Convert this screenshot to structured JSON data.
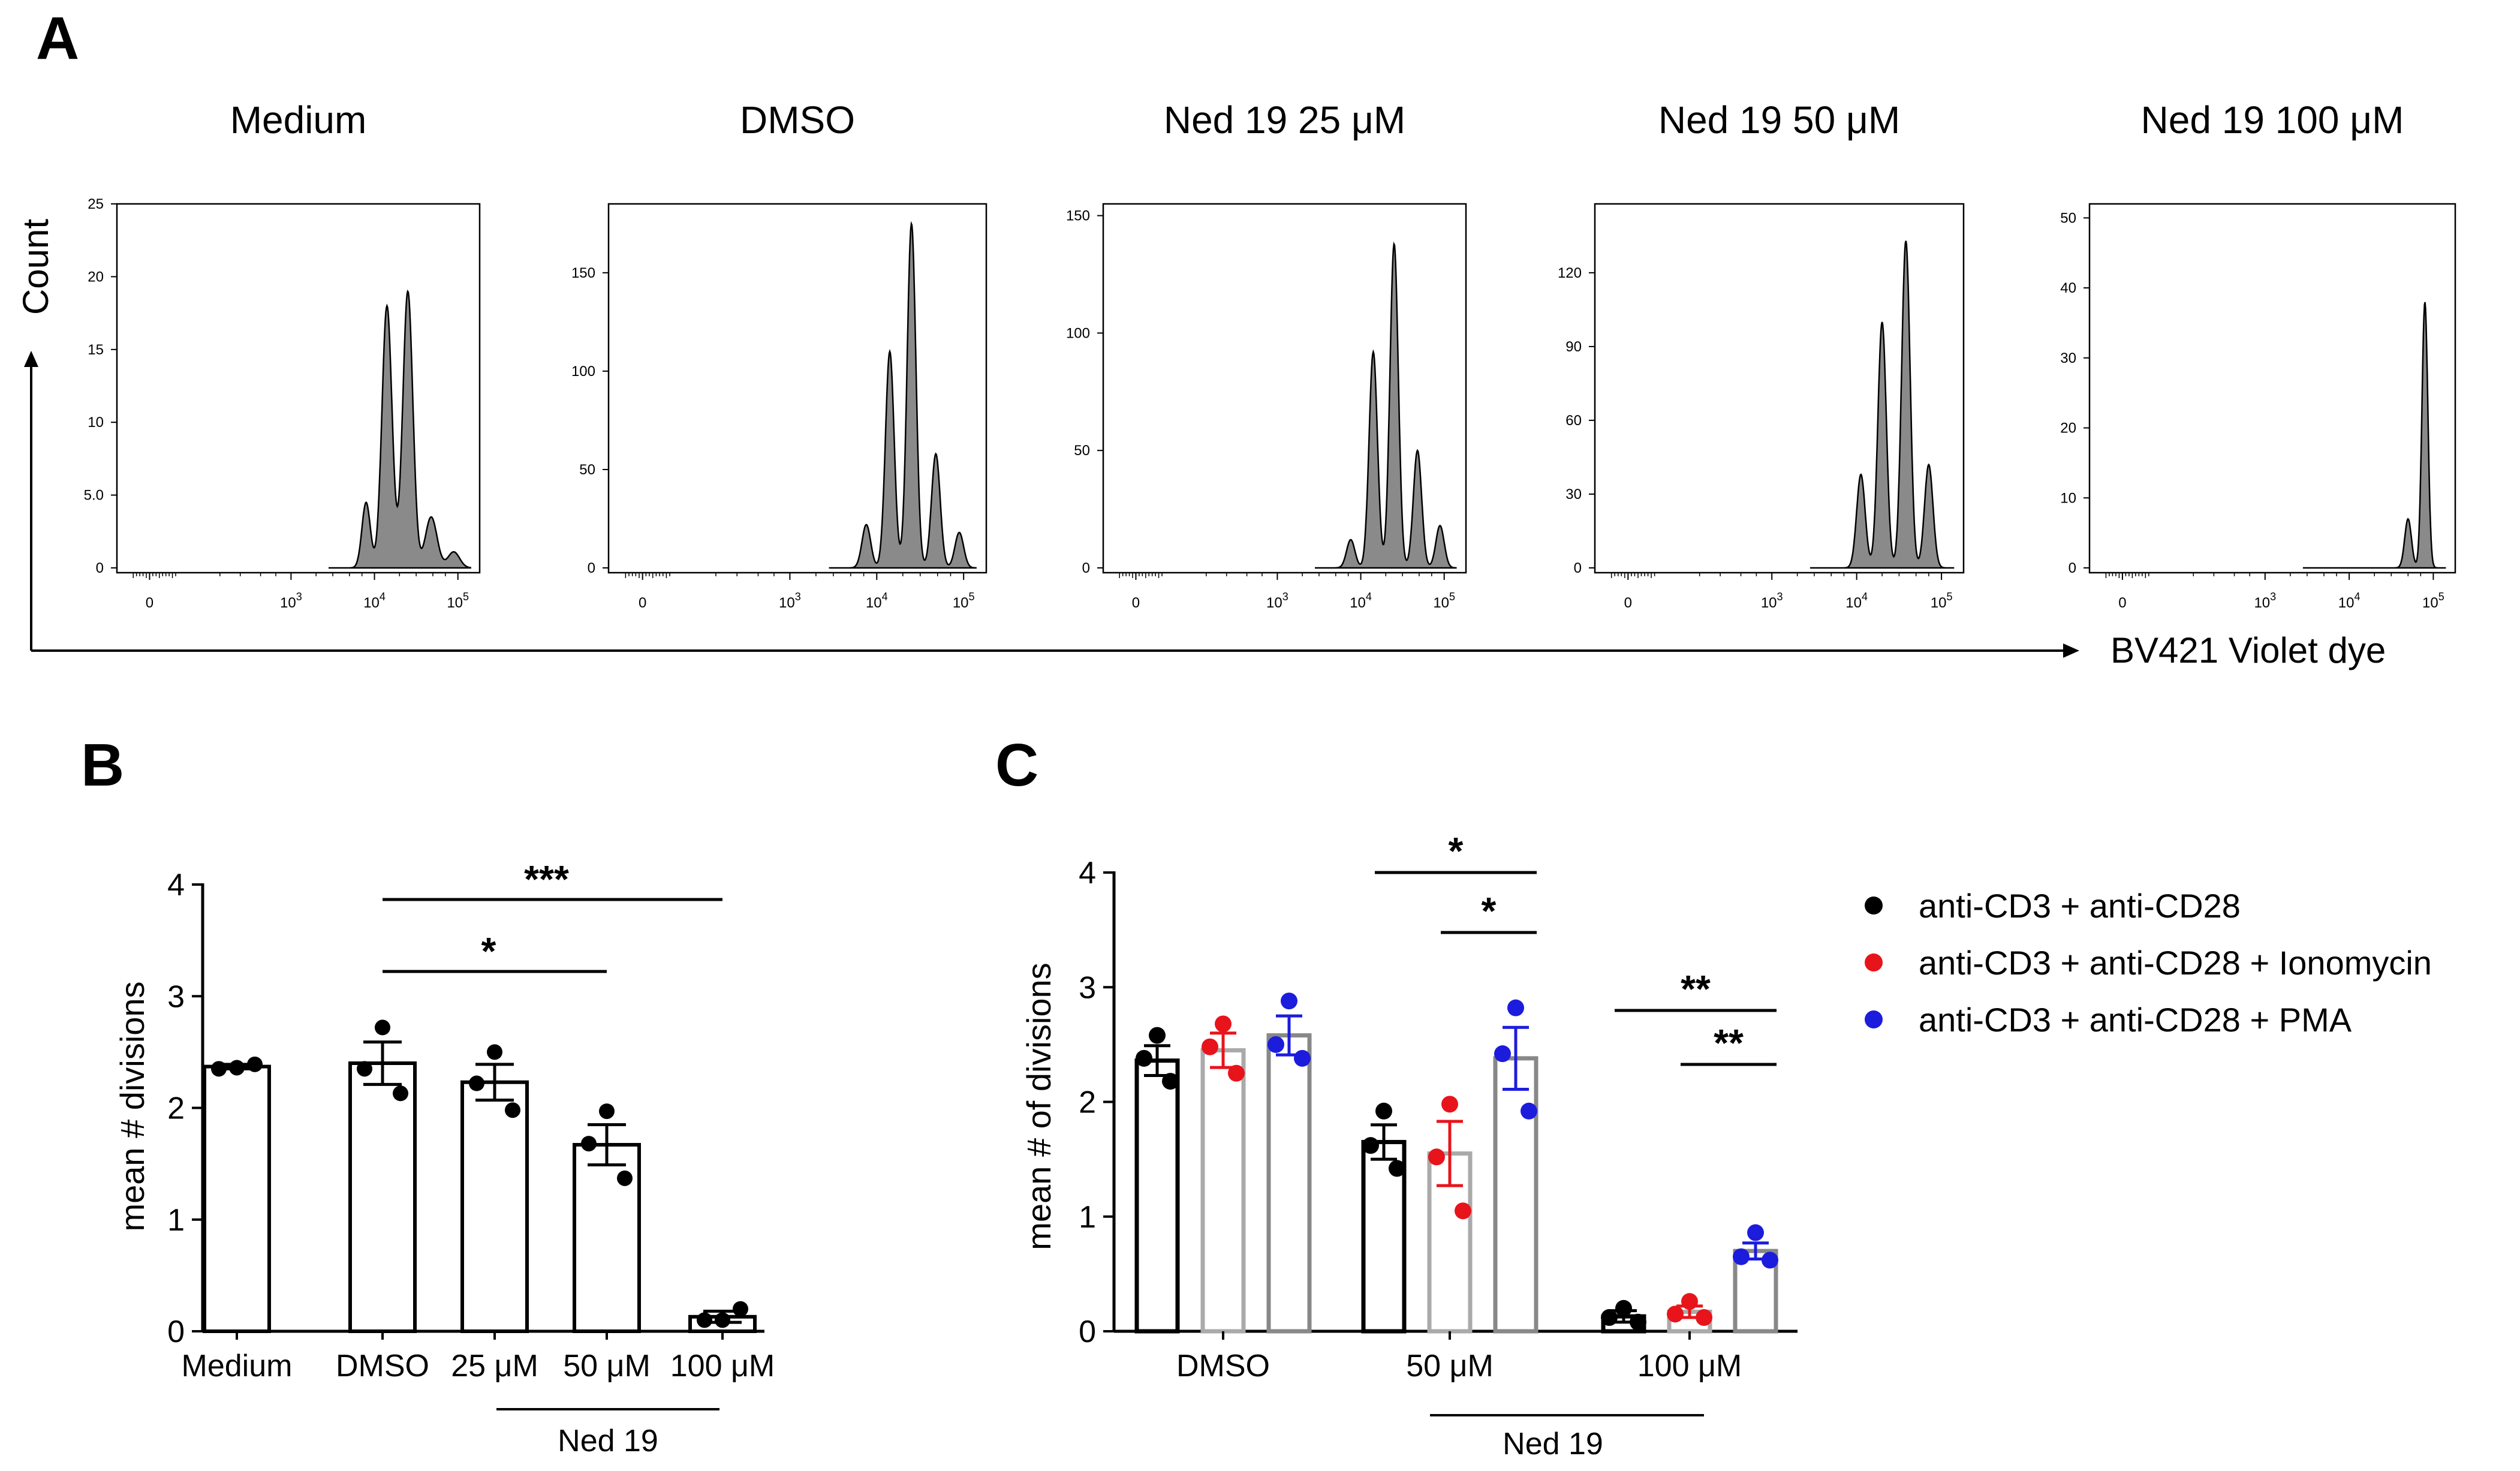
{
  "panel_a": {
    "letter": "A",
    "y_axis_label": "Count",
    "x_axis_label": "BV421 Violet dye",
    "x_ticks": [
      {
        "base": "0",
        "exp": ""
      },
      {
        "base": "10",
        "exp": "3"
      },
      {
        "base": "10",
        "exp": "4"
      },
      {
        "base": "10",
        "exp": "5"
      }
    ]
  },
  "panel_b": {
    "letter": "B"
  },
  "panel_c": {
    "letter": "C"
  },
  "chart_data": [
    {
      "type": "area",
      "panel": "A",
      "title": "Medium",
      "ylim": [
        0,
        25
      ],
      "y_ticks": [
        {
          "v": 0,
          "label": "0"
        },
        {
          "v": 5,
          "label": "5.0"
        },
        {
          "v": 10,
          "label": "10"
        },
        {
          "v": 15,
          "label": "15"
        },
        {
          "v": 20,
          "label": "20"
        },
        {
          "v": 25,
          "label": "25"
        }
      ],
      "peaks": [
        [
          3.9,
          4.5,
          0.05
        ],
        [
          4.15,
          18,
          0.06
        ],
        [
          4.4,
          19,
          0.06
        ],
        [
          4.68,
          3.5,
          0.07
        ],
        [
          4.95,
          1.1,
          0.07
        ]
      ]
    },
    {
      "type": "area",
      "panel": "A",
      "title": "DMSO",
      "ylim": [
        0,
        185
      ],
      "y_ticks": [
        {
          "v": 0,
          "label": "0"
        },
        {
          "v": 50,
          "label": "50"
        },
        {
          "v": 100,
          "label": "100"
        },
        {
          "v": 150,
          "label": "150"
        }
      ],
      "peaks": [
        [
          3.88,
          22,
          0.05
        ],
        [
          4.15,
          110,
          0.05
        ],
        [
          4.4,
          175,
          0.05
        ],
        [
          4.68,
          58,
          0.05
        ],
        [
          4.95,
          18,
          0.05
        ]
      ]
    },
    {
      "type": "area",
      "panel": "A",
      "title": "Ned 19 25 μM",
      "ylim": [
        0,
        155
      ],
      "y_ticks": [
        {
          "v": 0,
          "label": "0"
        },
        {
          "v": 50,
          "label": "50"
        },
        {
          "v": 100,
          "label": "100"
        },
        {
          "v": 150,
          "label": "150"
        }
      ],
      "peaks": [
        [
          3.88,
          12,
          0.05
        ],
        [
          4.15,
          92,
          0.05
        ],
        [
          4.4,
          138,
          0.05
        ],
        [
          4.68,
          50,
          0.05
        ],
        [
          4.95,
          18,
          0.05
        ]
      ]
    },
    {
      "type": "area",
      "panel": "A",
      "title": "Ned 19 50 μM",
      "ylim": [
        0,
        148
      ],
      "y_ticks": [
        {
          "v": 0,
          "label": "0"
        },
        {
          "v": 30,
          "label": "30"
        },
        {
          "v": 60,
          "label": "60"
        },
        {
          "v": 90,
          "label": "90"
        },
        {
          "v": 120,
          "label": "120"
        }
      ],
      "peaks": [
        [
          4.05,
          38,
          0.05
        ],
        [
          4.3,
          100,
          0.05
        ],
        [
          4.58,
          133,
          0.05
        ],
        [
          4.85,
          42,
          0.05
        ]
      ]
    },
    {
      "type": "area",
      "panel": "A",
      "title": "Ned 19 100 μM",
      "ylim": [
        0,
        52
      ],
      "y_ticks": [
        {
          "v": 0,
          "label": "0"
        },
        {
          "v": 10,
          "label": "10"
        },
        {
          "v": 20,
          "label": "20"
        },
        {
          "v": 30,
          "label": "30"
        },
        {
          "v": 40,
          "label": "40"
        },
        {
          "v": 50,
          "label": "50"
        }
      ],
      "peaks": [
        [
          4.7,
          7,
          0.04
        ],
        [
          4.9,
          38,
          0.035
        ]
      ]
    },
    {
      "type": "bar",
      "panel": "B",
      "categories": [
        "Medium",
        "DMSO",
        "25 μM",
        "50 μM",
        "100 μM"
      ],
      "values": [
        2.37,
        2.4,
        2.23,
        1.67,
        0.13
      ],
      "sem": [
        0.02,
        0.19,
        0.16,
        0.18,
        0.05
      ],
      "points": [
        [
          2.35,
          2.36,
          2.39
        ],
        [
          2.72,
          2.35,
          2.13
        ],
        [
          2.5,
          2.22,
          1.98
        ],
        [
          1.97,
          1.68,
          1.37
        ],
        [
          0.1,
          0.1,
          0.2
        ]
      ],
      "ylabel": "mean # divisions",
      "ylim": [
        0,
        4
      ],
      "yticks": [
        0,
        1,
        2,
        3,
        4
      ],
      "group_label": "Ned 19",
      "significance": [
        {
          "from": 1,
          "to": 4,
          "label": "***"
        },
        {
          "from": 1,
          "to": 3,
          "label": "*"
        }
      ]
    },
    {
      "type": "bar",
      "panel": "C",
      "categories": [
        "DMSO",
        "50 μM",
        "100 μM"
      ],
      "ylabel": "mean # of divisions",
      "ylim": [
        0,
        4
      ],
      "yticks": [
        0,
        1,
        2,
        3,
        4
      ],
      "group_label": "Ned 19",
      "series": [
        {
          "name": "anti-CD3 + anti-CD28",
          "color": "#000000",
          "bar_color": "#000000",
          "values": [
            2.36,
            1.65,
            0.13
          ],
          "sem": [
            0.13,
            0.15,
            0.05
          ],
          "points": [
            [
              2.58,
              2.38,
              2.18
            ],
            [
              1.92,
              1.62,
              1.42
            ],
            [
              0.2,
              0.12,
              0.08
            ]
          ]
        },
        {
          "name": "anti-CD3 + anti-CD28 + Ionomycin",
          "color": "#e8141b",
          "bar_color": "#aaaaaa",
          "values": [
            2.45,
            1.55,
            0.17
          ],
          "sem": [
            0.15,
            0.28,
            0.05
          ],
          "points": [
            [
              2.68,
              2.48,
              2.25
            ],
            [
              1.98,
              1.52,
              1.05
            ],
            [
              0.26,
              0.15,
              0.12
            ]
          ]
        },
        {
          "name": "anti-CD3 + anti-CD28 + PMA",
          "color": "#1c1cdd",
          "bar_color": "#888888",
          "values": [
            2.58,
            2.38,
            0.7
          ],
          "sem": [
            0.17,
            0.27,
            0.07
          ],
          "points": [
            [
              2.88,
              2.5,
              2.38
            ],
            [
              2.82,
              2.42,
              1.92
            ],
            [
              0.86,
              0.65,
              0.62
            ]
          ]
        }
      ],
      "significance": [
        {
          "group": 1,
          "from_series": 0,
          "to_series": 2,
          "label": "*"
        },
        {
          "group": 1,
          "from_series": 1,
          "to_series": 2,
          "label": "*"
        },
        {
          "group": 2,
          "from_series": 0,
          "to_series": 2,
          "label": "**"
        },
        {
          "group": 2,
          "from_series": 1,
          "to_series": 2,
          "label": "**"
        }
      ]
    }
  ]
}
